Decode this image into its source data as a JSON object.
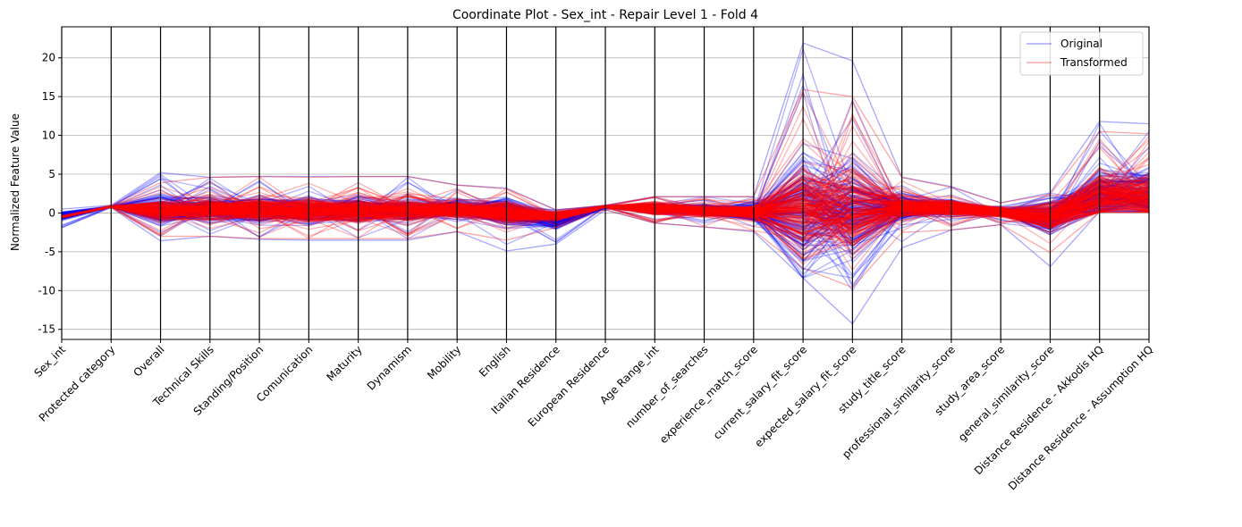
{
  "chart_data": {
    "type": "line",
    "subtype": "parallel-coordinates",
    "title": "Coordinate Plot - Sex_int - Repair Level 1 - Fold 4",
    "xlabel": "",
    "ylabel": "Normalized Feature Value",
    "ylim": [
      -16.3,
      24
    ],
    "yticks": [
      -15,
      -10,
      -5,
      0,
      5,
      10,
      15,
      20
    ],
    "grid": "horizontal",
    "legend_position": "top-right",
    "categories": [
      "Sex_int",
      "Protected category",
      "Overall",
      "Technical Skills",
      "Standing/Position",
      "Comunication",
      "Maturity",
      "Dynamism",
      "Mobility",
      "English",
      "Italian Residence",
      "European Residence",
      "Age Range_int",
      "number_of_searches",
      "experience_match_score",
      "current_salary_fit_score",
      "expected_salary_fit_score",
      "study_title_score",
      "professional_similarity_score",
      "study_area_score",
      "general_similarity_score",
      "Distance Residence - Akkodis HQ",
      "Distance Residence - Assumption HQ"
    ],
    "series": [
      {
        "name": "Original",
        "color": "#0000ff",
        "envelope_upper": [
          0.5,
          1.0,
          5.2,
          4.6,
          4.7,
          4.7,
          4.7,
          4.7,
          3.6,
          3.2,
          0.4,
          1.0,
          2.1,
          2.1,
          2.1,
          21.9,
          19.6,
          4.6,
          3.4,
          1.3,
          2.6,
          11.8,
          11.5
        ],
        "envelope_lower": [
          -1.9,
          0.7,
          -3.6,
          -3.0,
          -3.4,
          -3.5,
          -3.5,
          -3.5,
          -2.4,
          -4.9,
          -4.0,
          0.4,
          -1.3,
          -1.8,
          -2.4,
          -8.4,
          -14.3,
          -4.5,
          -2.2,
          -1.5,
          -6.9,
          0.2,
          0.2
        ],
        "typical": [
          -0.4,
          0.8,
          0.3,
          0.5,
          0.4,
          0.3,
          0.4,
          0.4,
          0.5,
          0.2,
          -1.0,
          0.8,
          0.6,
          0.3,
          0.0,
          0.3,
          0.0,
          0.6,
          0.7,
          0.1,
          -0.6,
          2.5,
          2.2
        ]
      },
      {
        "name": "Transformed",
        "color": "#ff0000",
        "envelope_upper": [
          -0.3,
          1.0,
          3.9,
          4.6,
          4.7,
          4.6,
          4.7,
          4.7,
          3.6,
          3.1,
          0.4,
          1.0,
          2.1,
          2.1,
          2.1,
          15.9,
          15.0,
          4.6,
          3.3,
          1.3,
          2.4,
          10.5,
          10.2
        ],
        "envelope_lower": [
          -0.7,
          0.7,
          -3.0,
          -3.0,
          -3.3,
          -3.3,
          -3.3,
          -3.3,
          -2.4,
          -3.5,
          -1.9,
          0.4,
          -1.3,
          -1.8,
          -2.3,
          -7.1,
          -9.6,
          -2.5,
          -2.2,
          -1.5,
          -5.1,
          0.1,
          0.1
        ],
        "typical": [
          -0.5,
          0.8,
          0.3,
          0.4,
          0.3,
          0.3,
          0.3,
          0.4,
          0.4,
          0.1,
          -0.4,
          0.8,
          0.6,
          0.3,
          0.0,
          0.5,
          0.3,
          0.6,
          0.7,
          0.1,
          -0.5,
          2.2,
          2.0
        ]
      }
    ]
  }
}
